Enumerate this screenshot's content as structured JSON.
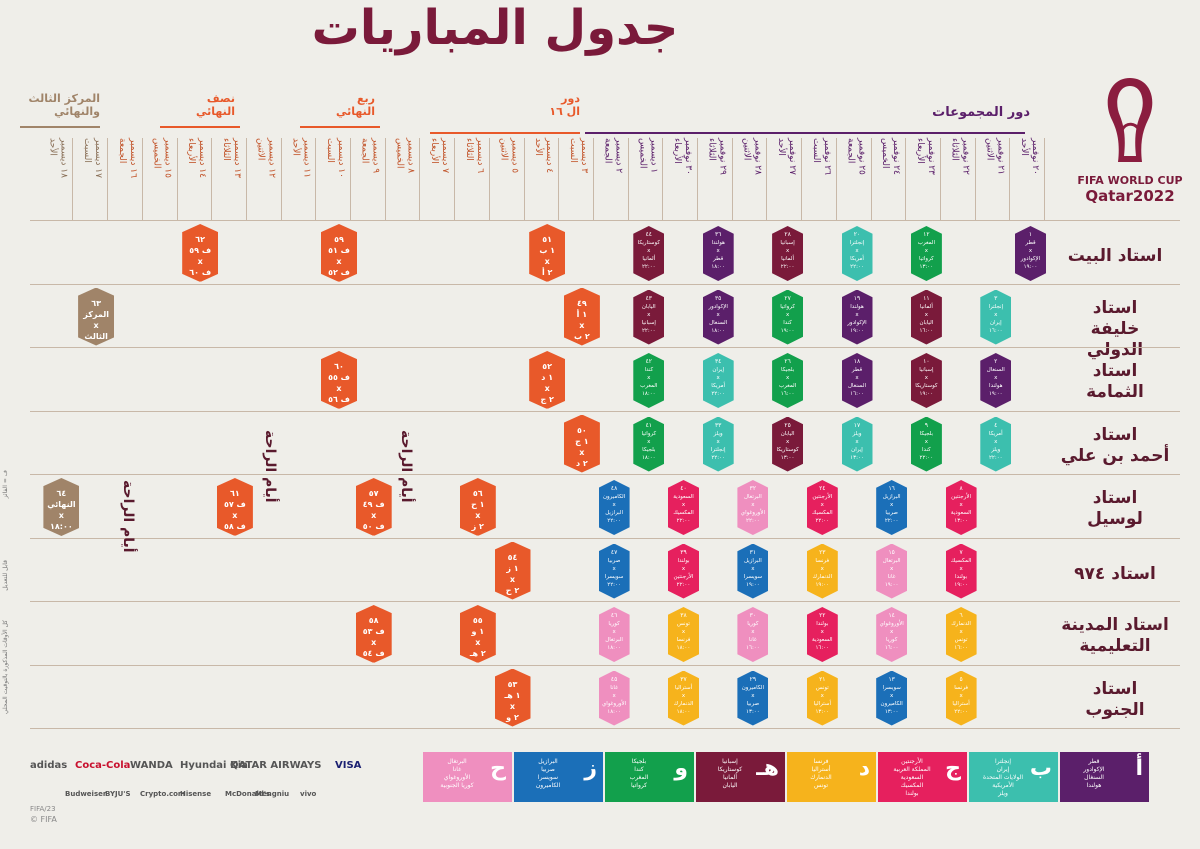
{
  "title": "جدول المباريات",
  "logo": {
    "line1": "FIFA WORLD CUP",
    "line2": "Qatar2022"
  },
  "phases": {
    "group_stage": "دور المجموعات",
    "round16": "دور\nال ١٦",
    "quarter": "ربع\nالنهائي",
    "semi": "نصف\nالنهائي",
    "final": "المركز الثالث\nوالنهائي"
  },
  "dates": [
    "٢٠ نوفمبر\nالأحد",
    "٢١ نوفمبر\nالاثنين",
    "٢٢ نوفمبر\nالثلاثاء",
    "٢٣ نوفمبر\nالأربعاء",
    "٢٤ نوفمبر\nالخميس",
    "٢٥ نوفمبر\nالجمعة",
    "٢٦ نوفمبر\nالسبت",
    "٢٧ نوفمبر\nالأحد",
    "٢٨ نوفمبر\nالاثنين",
    "٢٩ نوفمبر\nالثلاثاء",
    "٣٠ نوفمبر\nالأربعاء",
    "١ ديسمبر\nالخميس",
    "٢ ديسمبر\nالجمعة",
    "٣ ديسمبر\nالسبت",
    "٤ ديسمبر\nالأحد",
    "٥ ديسمبر\nالاثنين",
    "٦ ديسمبر\nالثلاثاء",
    "٧ ديسمبر\nالأربعاء",
    "٨ ديسمبر\nالخميس",
    "٩ ديسمبر\nالجمعة",
    "١٠ ديسمبر\nالسبت",
    "١١ ديسمبر\nالأحد",
    "١٢ ديسمبر\nالاثنين",
    "١٣ ديسمبر\nالثلاثاء",
    "١٤ ديسمبر\nالأربعاء",
    "١٥ ديسمبر\nالخميس",
    "١٦ ديسمبر\nالجمعة",
    "١٧ ديسمبر\nالسبت",
    "١٨ ديسمبر\nالأحد"
  ],
  "stadiums": [
    "استاد البيت",
    "استاد\nخليفة الدولي",
    "استاد\nالثمامة",
    "استاد\nأحمد بن علي",
    "استاد\nلوسيل",
    "استاد ٩٧٤",
    "استاد المدينة\nالتعليمية",
    "استاد\nالجنوب"
  ],
  "rest_days": "أيام الراحة",
  "colors": {
    "A": "#5b1f6a",
    "B": "#3cbfae",
    "C": "#e6205e",
    "D": "#f6b31c",
    "E": "#7a1a3a",
    "F": "#12a04c",
    "G": "#1b6fb8",
    "H": "#ef8fbf",
    "knockout": "#e8592a",
    "final": "#a08469"
  },
  "matches": [
    {
      "n": "١",
      "t1": "قطر",
      "t2": "الإكوادور",
      "time": "١٩:٠٠",
      "g": "A",
      "col": 0,
      "row": 0
    },
    {
      "n": "٢",
      "t1": "السنغال",
      "t2": "هولندا",
      "time": "١٩:٠٠",
      "g": "A",
      "col": 1,
      "row": 2
    },
    {
      "n": "٣",
      "t1": "إنجلترا",
      "t2": "إيران",
      "time": "١٦:٠٠",
      "g": "B",
      "col": 1,
      "row": 1
    },
    {
      "n": "٤",
      "t1": "أمريكا",
      "t2": "ويلز",
      "time": "٢٢:٠٠",
      "g": "B",
      "col": 1,
      "row": 3
    },
    {
      "n": "٧",
      "t1": "المكسيك",
      "t2": "بولندا",
      "time": "١٩:٠٠",
      "g": "C",
      "col": 2,
      "row": 5
    },
    {
      "n": "٨",
      "t1": "الأرجنتين",
      "t2": "السعودية",
      "time": "١٣:٠٠",
      "g": "C",
      "col": 2,
      "row": 4
    },
    {
      "n": "٥",
      "t1": "فرنسا",
      "t2": "أستراليا",
      "time": "٢٢:٠٠",
      "g": "D",
      "col": 2,
      "row": 7
    },
    {
      "n": "٦",
      "t1": "الدنمارك",
      "t2": "تونس",
      "time": "١٦:٠٠",
      "g": "D",
      "col": 2,
      "row": 6
    },
    {
      "n": "١١",
      "t1": "ألمانيا",
      "t2": "اليابان",
      "time": "١٦:٠٠",
      "g": "E",
      "col": 3,
      "row": 1
    },
    {
      "n": "١٠",
      "t1": "إسبانيا",
      "t2": "كوستاريكا",
      "time": "١٩:٠٠",
      "g": "E",
      "col": 3,
      "row": 2
    },
    {
      "n": "١٢",
      "t1": "المغرب",
      "t2": "كرواتيا",
      "time": "١٣:٠٠",
      "g": "F",
      "col": 3,
      "row": 0
    },
    {
      "n": "٩",
      "t1": "بلجيكا",
      "t2": "كندا",
      "time": "٢٢:٠٠",
      "g": "F",
      "col": 3,
      "row": 3
    },
    {
      "n": "١٣",
      "t1": "سويسرا",
      "t2": "الكاميرون",
      "time": "١٣:٠٠",
      "g": "G",
      "col": 4,
      "row": 7
    },
    {
      "n": "١٦",
      "t1": "البرازيل",
      "t2": "صربيا",
      "time": "٢٢:٠٠",
      "g": "G",
      "col": 4,
      "row": 4
    },
    {
      "n": "١٤",
      "t1": "الأوروغواي",
      "t2": "كوريا",
      "time": "١٦:٠٠",
      "g": "H",
      "col": 4,
      "row": 6
    },
    {
      "n": "١٥",
      "t1": "البرتغال",
      "t2": "غانا",
      "time": "١٩:٠٠",
      "g": "H",
      "col": 4,
      "row": 5
    },
    {
      "n": "١٧",
      "t1": "ويلز",
      "t2": "إيران",
      "time": "١٣:٠٠",
      "g": "B",
      "col": 5,
      "row": 3
    },
    {
      "n": "١٨",
      "t1": "قطر",
      "t2": "السنغال",
      "time": "١٦:٠٠",
      "g": "A",
      "col": 5,
      "row": 2
    },
    {
      "n": "١٩",
      "t1": "هولندا",
      "t2": "الإكوادور",
      "time": "١٩:٠٠",
      "g": "A",
      "col": 5,
      "row": 1
    },
    {
      "n": "٢٠",
      "t1": "إنجلترا",
      "t2": "أمريكا",
      "time": "٢٢:٠٠",
      "g": "B",
      "col": 5,
      "row": 0
    },
    {
      "n": "٢١",
      "t1": "تونس",
      "t2": "أستراليا",
      "time": "١٣:٠٠",
      "g": "D",
      "col": 6,
      "row": 7
    },
    {
      "n": "٢٢",
      "t1": "بولندا",
      "t2": "السعودية",
      "time": "١٦:٠٠",
      "g": "C",
      "col": 6,
      "row": 6
    },
    {
      "n": "٢٣",
      "t1": "فرنسا",
      "t2": "الدنمارك",
      "time": "١٩:٠٠",
      "g": "D",
      "col": 6,
      "row": 5
    },
    {
      "n": "٢٤",
      "t1": "الأرجنتين",
      "t2": "المكسيك",
      "time": "٢٢:٠٠",
      "g": "C",
      "col": 6,
      "row": 4
    },
    {
      "n": "٢٥",
      "t1": "اليابان",
      "t2": "كوستاريكا",
      "time": "١٣:٠٠",
      "g": "E",
      "col": 7,
      "row": 3
    },
    {
      "n": "٢٦",
      "t1": "بلجيكا",
      "t2": "المغرب",
      "time": "١٦:٠٠",
      "g": "F",
      "col": 7,
      "row": 2
    },
    {
      "n": "٢٧",
      "t1": "كرواتيا",
      "t2": "كندا",
      "time": "١٩:٠٠",
      "g": "F",
      "col": 7,
      "row": 1
    },
    {
      "n": "٢٨",
      "t1": "إسبانيا",
      "t2": "ألمانيا",
      "time": "٢٢:٠٠",
      "g": "E",
      "col": 7,
      "row": 0
    },
    {
      "n": "٢٩",
      "t1": "الكاميرون",
      "t2": "صربيا",
      "time": "١٣:٠٠",
      "g": "G",
      "col": 8,
      "row": 7
    },
    {
      "n": "٣٠",
      "t1": "كوريا",
      "t2": "غانا",
      "time": "١٦:٠٠",
      "g": "H",
      "col": 8,
      "row": 6
    },
    {
      "n": "٣١",
      "t1": "البرازيل",
      "t2": "سويسرا",
      "time": "١٩:٠٠",
      "g": "G",
      "col": 8,
      "row": 5
    },
    {
      "n": "٣٢",
      "t1": "البرتغال",
      "t2": "الأوروغواي",
      "time": "٢٢:٠٠",
      "g": "H",
      "col": 8,
      "row": 4
    },
    {
      "n": "٣٣",
      "t1": "ويلز",
      "t2": "إنجلترا",
      "time": "٢٢:٠٠",
      "g": "B",
      "col": 9,
      "row": 3
    },
    {
      "n": "٣٤",
      "t1": "إيران",
      "t2": "أمريكا",
      "time": "٢٢:٠٠",
      "g": "B",
      "col": 9,
      "row": 2
    },
    {
      "n": "٣٥",
      "t1": "الإكوادور",
      "t2": "السنغال",
      "time": "١٨:٠٠",
      "g": "A",
      "col": 9,
      "row": 1
    },
    {
      "n": "٣٦",
      "t1": "هولندا",
      "t2": "قطر",
      "time": "١٨:٠٠",
      "g": "A",
      "col": 9,
      "row": 0
    },
    {
      "n": "٣٧",
      "t1": "أستراليا",
      "t2": "الدنمارك",
      "time": "١٨:٠٠",
      "g": "D",
      "col": 10,
      "row": 7
    },
    {
      "n": "٣٨",
      "t1": "تونس",
      "t2": "فرنسا",
      "time": "١٨:٠٠",
      "g": "D",
      "col": 10,
      "row": 6
    },
    {
      "n": "٣٩",
      "t1": "بولندا",
      "t2": "الأرجنتين",
      "time": "٢٢:٠٠",
      "g": "C",
      "col": 10,
      "row": 5
    },
    {
      "n": "٤٠",
      "t1": "السعودية",
      "t2": "المكسيك",
      "time": "٢٢:٠٠",
      "g": "C",
      "col": 10,
      "row": 4
    },
    {
      "n": "٤١",
      "t1": "كرواتيا",
      "t2": "بلجيكا",
      "time": "١٨:٠٠",
      "g": "F",
      "col": 11,
      "row": 3
    },
    {
      "n": "٤٢",
      "t1": "كندا",
      "t2": "المغرب",
      "time": "١٨:٠٠",
      "g": "F",
      "col": 11,
      "row": 2
    },
    {
      "n": "٤٣",
      "t1": "اليابان",
      "t2": "إسبانيا",
      "time": "٢٢:٠٠",
      "g": "E",
      "col": 11,
      "row": 1
    },
    {
      "n": "٤٤",
      "t1": "كوستاريكا",
      "t2": "ألمانيا",
      "time": "٢٢:٠٠",
      "g": "E",
      "col": 11,
      "row": 0
    },
    {
      "n": "٤٥",
      "t1": "غانا",
      "t2": "الأوروغواي",
      "time": "١٨:٠٠",
      "g": "H",
      "col": 12,
      "row": 7
    },
    {
      "n": "٤٦",
      "t1": "كوريا",
      "t2": "البرتغال",
      "time": "١٨:٠٠",
      "g": "H",
      "col": 12,
      "row": 6
    },
    {
      "n": "٤٧",
      "t1": "صربيا",
      "t2": "سويسرا",
      "time": "٢٢:٠٠",
      "g": "G",
      "col": 12,
      "row": 5
    },
    {
      "n": "٤٨",
      "t1": "الكاميرون",
      "t2": "البرازيل",
      "time": "٢٢:٠٠",
      "g": "G",
      "col": 12,
      "row": 4
    }
  ],
  "knockouts": [
    {
      "n": "٤٩",
      "t1": "١ أ",
      "t2": "٢ ب",
      "time": "١٨:٠٠",
      "col": 13,
      "row": 1
    },
    {
      "n": "٥٠",
      "t1": "١ ج",
      "t2": "٢ د",
      "time": "٢٢:٠٠",
      "col": 13,
      "row": 3
    },
    {
      "n": "٥١",
      "t1": "١ ب",
      "t2": "٢ أ",
      "time": "٢٢:٠٠",
      "col": 14,
      "row": 0
    },
    {
      "n": "٥٢",
      "t1": "١ د",
      "t2": "٢ ج",
      "time": "١٨:٠٠",
      "col": 14,
      "row": 2
    },
    {
      "n": "٥٤",
      "t1": "١ ز",
      "t2": "٢ ح",
      "time": "٢٢:٠٠",
      "col": 15,
      "row": 5
    },
    {
      "n": "٥٣",
      "t1": "١ هـ",
      "t2": "٢ و",
      "time": "١٨:٠٠",
      "col": 15,
      "row": 7
    },
    {
      "n": "٥٥",
      "t1": "١ و",
      "t2": "٢ هـ",
      "time": "١٨:٠٠",
      "col": 16,
      "row": 6
    },
    {
      "n": "٥٦",
      "t1": "١ ح",
      "t2": "٢ ز",
      "time": "٢٢:٠٠",
      "col": 16,
      "row": 4
    },
    {
      "n": "٥٨",
      "t1": "ف ٥٣",
      "t2": "ف ٥٤",
      "time": "١٨:٠٠",
      "col": 19,
      "row": 6
    },
    {
      "n": "٥٧",
      "t1": "ف ٤٩",
      "t2": "ف ٥٠",
      "time": "٢٢:٠٠",
      "col": 19,
      "row": 4
    },
    {
      "n": "٥٩",
      "t1": "ف ٥١",
      "t2": "ف ٥٢",
      "time": "٢٢:٠٠",
      "col": 20,
      "row": 0
    },
    {
      "n": "٦٠",
      "t1": "ف ٥٥",
      "t2": "ف ٥٦",
      "time": "١٨:٠٠",
      "col": 20,
      "row": 2
    },
    {
      "n": "٦١",
      "t1": "ف ٥٧",
      "t2": "ف ٥٨",
      "time": "٢٢:٠٠",
      "col": 23,
      "row": 4
    },
    {
      "n": "٦٢",
      "t1": "ف ٥٩",
      "t2": "ف ٦٠",
      "time": "٢٢:٠٠",
      "col": 24,
      "row": 0
    }
  ],
  "finals": [
    {
      "n": "٦٣",
      "t1": "المركز",
      "t2": "الثالث",
      "time": "١٨:٠٠",
      "col": 27,
      "row": 1
    },
    {
      "n": "٦٤",
      "t1": "النهائي",
      "t2": "",
      "time": "١٨:٠٠",
      "col": 28,
      "row": 4
    }
  ],
  "groups": [
    {
      "letter": "أ",
      "teams": "قطر\nالإكوادور\nالسنغال\nهولندا",
      "color": "#5b1f6a"
    },
    {
      "letter": "ب",
      "teams": "إنجلترا\nإيران\nالولايات المتحدة الأمريكية\nويلز",
      "color": "#3cbfae"
    },
    {
      "letter": "ج",
      "teams": "الأرجنتين\nالمملكة العربية السعودية\nالمكسيك\nبولندا",
      "color": "#e6205e"
    },
    {
      "letter": "د",
      "teams": "فرنسا\nأستراليا\nالدنمارك\nتونس",
      "color": "#f6b31c"
    },
    {
      "letter": "هـ",
      "teams": "إسبانيا\nكوستاريكا\nألمانيا\nاليابان",
      "color": "#7a1a3a"
    },
    {
      "letter": "و",
      "teams": "بلجيكا\nكندا\nالمغرب\nكرواتيا",
      "color": "#12a04c"
    },
    {
      "letter": "ز",
      "teams": "البرازيل\nصربيا\nسويسرا\nالكاميرون",
      "color": "#1b6fb8"
    },
    {
      "letter": "ح",
      "teams": "البرتغال\nغانا\nالأوروغواي\nكوريا الجنوبية",
      "color": "#ef8fbf"
    }
  ],
  "sponsors": [
    "VISA",
    "QATAR AIRWAYS",
    "Hyundai Kia",
    "WANDA",
    "Coca-Cola",
    "adidas",
    "vivo",
    "Mengniu",
    "McDonald's",
    "Hisense",
    "Crypto.com",
    "BYJU'S",
    "Budweiser"
  ],
  "side_notes": [
    "ف = الفائز",
    "قابل للتعديل",
    "كل الأوقات المذكورة بالتوقيت المحلي"
  ],
  "footer": {
    "copyright": "© FIFA",
    "small": "FIFA/23"
  }
}
